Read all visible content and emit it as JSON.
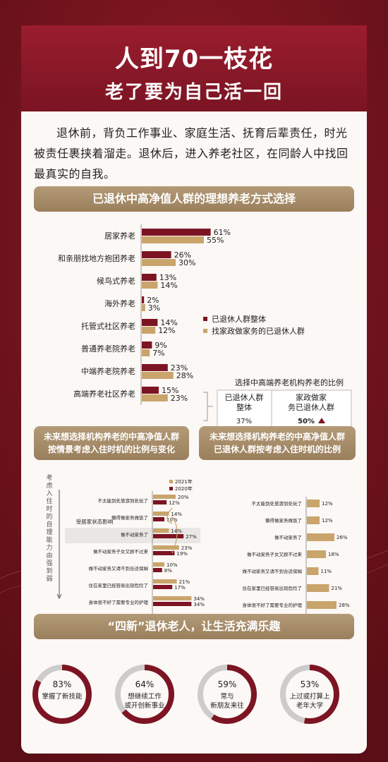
{
  "title": "人到70一枝花",
  "subtitle": "老了要为自己活一回",
  "intro": "退休前，背负工作事业、家庭生活、抚育后辈责任，时光被责任裹挟着溜走。退休后，进入养老社区，在同龄人中找回最真实的自我。",
  "colors": {
    "dark_red": "#7d1423",
    "gold": "#c9a46b",
    "bar_bg": "#a8906c"
  },
  "section1": {
    "title": "已退休中高净值人群的理想养老方式选择"
  },
  "section2": {
    "title_line1": "未来想选择机构养老的中高净值人群",
    "title_line2": "按情景考虑入住时机的比例与变化"
  },
  "section3": {
    "title_line1": "未来想选择机构养老的中高净值人群",
    "title_line2": "已退休人群按考虑入住时机的比例"
  },
  "section4": {
    "title": "“四新”退休老人，让生活充满乐趣"
  },
  "chart_data": [
    {
      "type": "bar",
      "orientation": "horizontal",
      "categories": [
        "居家养老",
        "和亲朋找地方抱团养老",
        "候鸟式养老",
        "海外养老",
        "托管式社区养老",
        "普通养老院养老",
        "中端养老院养老",
        "高端养老社区养老"
      ],
      "series": [
        {
          "name": "已退休人群整体",
          "values": [
            61,
            26,
            13,
            2,
            14,
            9,
            23,
            15
          ],
          "labels": [
            "61%",
            "26%",
            "13%",
            "2%",
            "14%",
            "9%",
            "23%",
            "15%"
          ]
        },
        {
          "name": "找家政做家务的已退休人群",
          "values": [
            55,
            30,
            14,
            3,
            12,
            7,
            28,
            23
          ],
          "labels": [
            "55%",
            "30%",
            "14%",
            "3%",
            "12%",
            "7%",
            "28%",
            "23%"
          ]
        }
      ],
      "xlim": [
        0,
        100
      ],
      "legend": "right",
      "inset_table": {
        "title": "选择中高端养老机构养老的比例",
        "col1_header": "已退休人群整体",
        "col2_header": "家政做家务已退休人群",
        "col1_value": "37%",
        "col2_value": "50%"
      }
    },
    {
      "type": "bar",
      "orientation": "horizontal",
      "ylabel": "考虑入住时的自理能力由强到弱",
      "categories": [
        "不太能到处旅游到处玩了",
        "懒得做家务做饭了",
        "做不动家务了",
        "做不动家务子女又顾不过来",
        "做不动家务又请不到合适保姆",
        "住在家里已经容易出现危险了",
        "身体很不好了需要专业的护理"
      ],
      "series": [
        {
          "name": "2021年",
          "values": [
            20,
            14,
            14,
            23,
            10,
            21,
            34
          ],
          "labels": [
            "20%",
            "14%",
            "14%",
            "23%",
            "10%",
            "21%",
            "34%"
          ]
        },
        {
          "name": "2020年",
          "values": [
            12,
            10,
            27,
            19,
            8,
            17,
            34
          ],
          "labels": [
            "12%",
            "10%",
            "27%",
            "19%",
            "8%",
            "17%",
            "34%"
          ]
        }
      ],
      "annotation": "受居家状态影响",
      "legend": "top-right"
    },
    {
      "type": "bar",
      "orientation": "horizontal",
      "categories": [
        "不太能到处旅游到处玩了",
        "懒得做家务做饭了",
        "做不动家务了",
        "做不动家务子女又顾不过来",
        "做不动家务又请不到合适保姆",
        "住在家里已经容易出现危险了",
        "身体很不好了需要专业的护理"
      ],
      "series": [
        {
          "values": [
            12,
            12,
            26,
            18,
            11,
            21,
            28
          ],
          "labels": [
            "12%",
            "12%",
            "26%",
            "18%",
            "11%",
            "21%",
            "28%"
          ]
        }
      ]
    },
    {
      "type": "pie",
      "items": [
        {
          "value": 83,
          "pct": "83%",
          "line1": "掌握了新技能",
          "line2": ""
        },
        {
          "value": 64,
          "pct": "64%",
          "line1": "想继续工作",
          "line2": "或开创新事业"
        },
        {
          "value": 59,
          "pct": "59%",
          "line1": "常与",
          "line2": "新朋友来往"
        },
        {
          "value": 53,
          "pct": "53%",
          "line1": "上过或打算上",
          "line2": "老年大学"
        }
      ]
    }
  ]
}
